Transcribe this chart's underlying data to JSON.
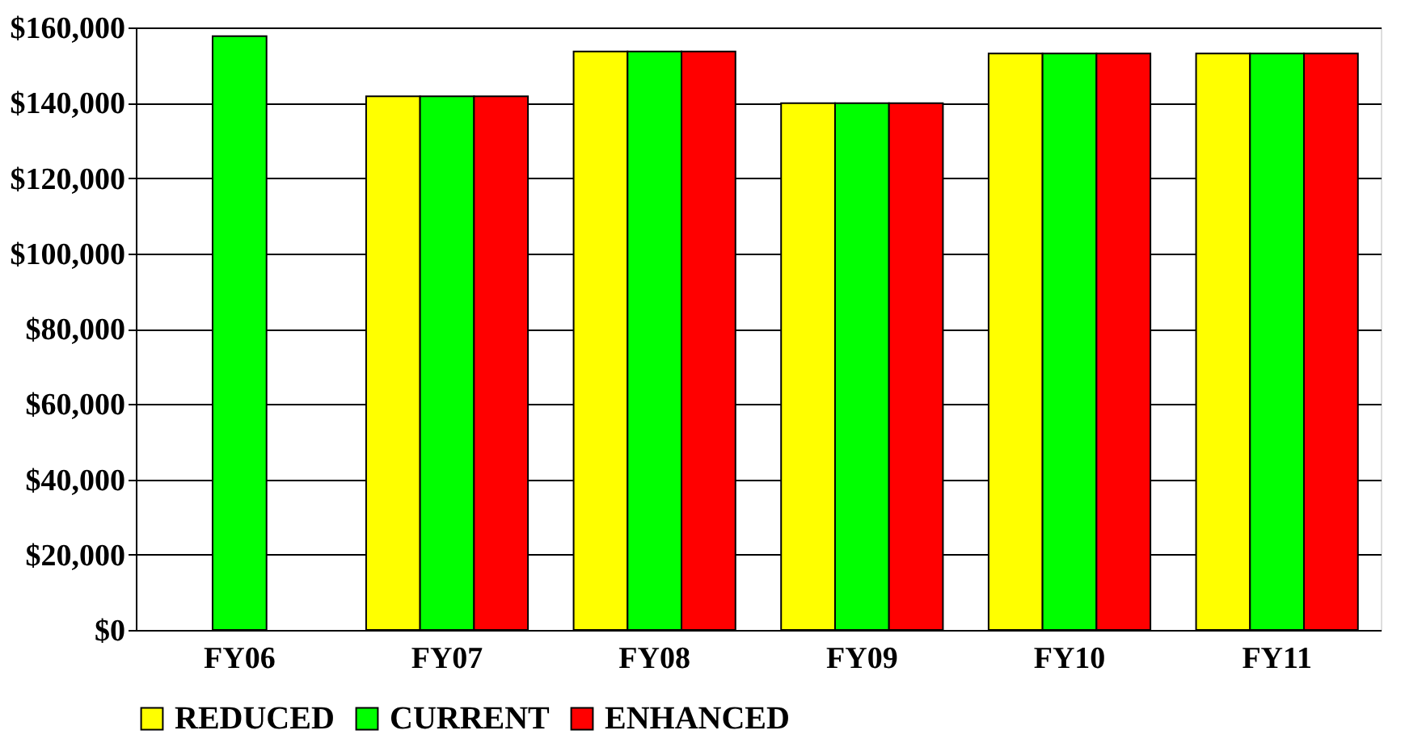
{
  "chart_data": {
    "type": "bar",
    "categories": [
      "FY06",
      "FY07",
      "FY08",
      "FY09",
      "FY10",
      "FY11"
    ],
    "series": [
      {
        "name": "REDUCED",
        "color": "#ffff00",
        "values": [
          null,
          141700,
          153600,
          139900,
          153100,
          153100
        ]
      },
      {
        "name": "CURRENT",
        "color": "#00ff00",
        "values": [
          157700,
          141700,
          153600,
          139900,
          153100,
          153100
        ]
      },
      {
        "name": "ENHANCED",
        "color": "#ff0000",
        "values": [
          null,
          141700,
          153600,
          139900,
          153100,
          153100
        ]
      }
    ],
    "ylim": [
      0,
      160000
    ],
    "yticks": [
      {
        "value": 0,
        "label": "$0"
      },
      {
        "value": 20000,
        "label": "$20,000"
      },
      {
        "value": 40000,
        "label": "$40,000"
      },
      {
        "value": 60000,
        "label": "$60,000"
      },
      {
        "value": 80000,
        "label": "$80,000"
      },
      {
        "value": 100000,
        "label": "$100,000"
      },
      {
        "value": 120000,
        "label": "$120,000"
      },
      {
        "value": 140000,
        "label": "$140,000"
      },
      {
        "value": 160000,
        "label": "$160,000"
      }
    ],
    "grid": "y",
    "legend": "bottom"
  }
}
